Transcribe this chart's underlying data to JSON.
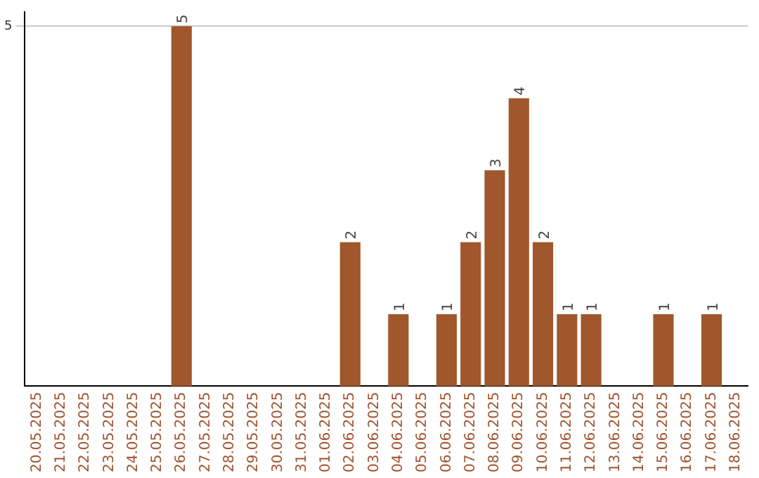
{
  "chart_data": {
    "type": "bar",
    "categories": [
      "20.05.2025",
      "21.05.2025",
      "22.05.2025",
      "23.05.2025",
      "24.05.2025",
      "25.05.2025",
      "26.05.2025",
      "27.05.2025",
      "28.05.2025",
      "29.05.2025",
      "30.05.2025",
      "31.05.2025",
      "01.06.2025",
      "02.06.2025",
      "03.06.2025",
      "04.06.2025",
      "05.06.2025",
      "06.06.2025",
      "07.06.2025",
      "08.06.2025",
      "09.06.2025",
      "10.06.2025",
      "11.06.2025",
      "12.06.2025",
      "13.06.2025",
      "14.06.2025",
      "15.06.2025",
      "16.06.2025",
      "17.06.2025",
      "18.06.2025"
    ],
    "values": [
      0,
      0,
      0,
      0,
      0,
      0,
      5,
      0,
      0,
      0,
      0,
      0,
      0,
      2,
      0,
      1,
      0,
      1,
      2,
      3,
      4,
      2,
      1,
      1,
      0,
      0,
      1,
      0,
      1,
      0
    ],
    "value_labels": [
      null,
      null,
      null,
      null,
      null,
      null,
      "5",
      null,
      null,
      null,
      null,
      null,
      null,
      "2",
      null,
      "1",
      null,
      "1",
      "2",
      "3",
      "4",
      "2",
      "1",
      "1",
      null,
      null,
      "1",
      null,
      "1",
      null
    ],
    "color": "#a0572b",
    "ylim": [
      0,
      5.2
    ],
    "yticks": [
      5
    ],
    "grid": "y"
  }
}
